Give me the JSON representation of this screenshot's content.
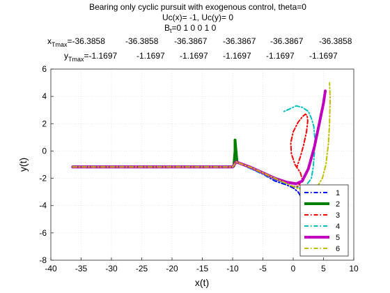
{
  "chart_data": {
    "type": "line",
    "title": [
      "Bearing only cyclic pursuit with exogenous control, theta=0",
      "Uc(x)= -1, Uc(y)= 0"
    ],
    "bt_label": "B",
    "bt_sub": "t",
    "bt_values": "=0  1  0  0  1  0",
    "xtmax_label": "x",
    "xtmax_sub": "Tmax",
    "xtmax_values": [
      "=-36.3858",
      "-36.3858",
      "-36.3867",
      "-36.3867",
      "-36.3867",
      "-36.3858"
    ],
    "ytmax_label": "y",
    "ytmax_sub": "Tmax",
    "ytmax_values": [
      "=-1.1697",
      "-1.1697",
      "-1.1697",
      "-1.1697",
      "-1.1697",
      "-1.1697"
    ],
    "xlabel": "x(t)",
    "ylabel": "y(t)",
    "xlim": [
      -40,
      10
    ],
    "ylim": [
      -8,
      6
    ],
    "xticks": [
      -40,
      -35,
      -30,
      -25,
      -20,
      -15,
      -10,
      -5,
      0,
      5,
      10
    ],
    "yticks": [
      -8,
      -6,
      -4,
      -2,
      0,
      2,
      4,
      6
    ],
    "legend_position": "bottom-right",
    "series": [
      {
        "name": "1",
        "color": "#0000ff",
        "style": "dashdot",
        "width": 2,
        "x": [
          -36.39,
          -10,
          -9.4,
          -7,
          -5,
          -3,
          -1,
          0,
          0.8,
          1.5,
          2.5,
          3.5,
          5,
          6,
          7
        ],
        "y": [
          -1.17,
          -1.17,
          -0.8,
          -1.3,
          -1.7,
          -2.2,
          -2.5,
          -2.7,
          -3.0,
          -3.5,
          -4.2,
          -4.8,
          -5.4,
          -5.9,
          -6.2
        ]
      },
      {
        "name": "2",
        "color": "#008000",
        "style": "solid",
        "width": 4,
        "x": [
          -36.39,
          -10,
          -9.8,
          -9.7,
          -9.6,
          -9.6,
          -9.5,
          -9.4,
          -9.3
        ],
        "y": [
          -1.17,
          -1.17,
          -1.1,
          -0.6,
          0,
          0.8,
          0.3,
          -0.2,
          -0.7
        ]
      },
      {
        "name": "3",
        "color": "#ff0000",
        "style": "dashdot",
        "width": 2,
        "x": [
          -36.39,
          -10,
          -9.4,
          -7,
          -5,
          -3,
          -1,
          0,
          0.8,
          1.5,
          1.2,
          0.3,
          -0.3,
          -0.4,
          0,
          0.8,
          1.5,
          2,
          2.3,
          2.4,
          2.2,
          1.7,
          1.2,
          0.6
        ],
        "y": [
          -1.17,
          -1.17,
          -0.8,
          -1.2,
          -1.6,
          -2.1,
          -2.4,
          -2.6,
          -2.6,
          -2.1,
          -1.6,
          -1.0,
          -0.2,
          0.6,
          1.4,
          2.1,
          2.5,
          2.7,
          2.6,
          2.2,
          1.4,
          0.4,
          -0.4,
          -1.2
        ]
      },
      {
        "name": "4",
        "color": "#00bfbf",
        "style": "dashdot",
        "width": 2,
        "x": [
          -36.39,
          -10,
          -9.4,
          -7,
          -5,
          -3,
          -1,
          0,
          1,
          2,
          3,
          3.3,
          3.5,
          3.6,
          3.4,
          3.0,
          2.5,
          1.5,
          0.5,
          -0.5,
          -1.5
        ],
        "y": [
          -1.17,
          -1.17,
          -0.8,
          -1.3,
          -1.7,
          -2.1,
          -2.4,
          -2.6,
          -2.7,
          -2.6,
          -2.0,
          -1.2,
          -0.2,
          0.8,
          1.8,
          2.4,
          2.9,
          3.2,
          3.3,
          3.1,
          2.9
        ]
      },
      {
        "name": "5",
        "color": "#bf00bf",
        "style": "solid",
        "width": 4,
        "x": [
          -36.39,
          -10,
          -9.4,
          -7,
          -5,
          -3,
          -1,
          0.5,
          1.5,
          2.5,
          3.5,
          4.3,
          5.0,
          5.3
        ],
        "y": [
          -1.17,
          -1.17,
          -0.8,
          -1.2,
          -1.6,
          -2.0,
          -2.3,
          -2.4,
          -2.2,
          -1.3,
          0.3,
          2.0,
          3.5,
          4.4
        ]
      },
      {
        "name": "6",
        "color": "#bfbf00",
        "style": "dashdot",
        "width": 2,
        "x": [
          -36.39,
          -10,
          -9.4,
          -7,
          -5,
          -3,
          -1,
          0.5,
          2,
          3,
          4,
          4.8,
          5.4,
          5.8,
          6.0,
          6.1,
          6.0
        ],
        "y": [
          -1.17,
          -1.17,
          -0.8,
          -1.2,
          -1.6,
          -2.0,
          -2.4,
          -2.7,
          -2.9,
          -2.9,
          -2.6,
          -2.0,
          -1.0,
          0.5,
          2.0,
          3.8,
          5.0
        ]
      }
    ]
  }
}
